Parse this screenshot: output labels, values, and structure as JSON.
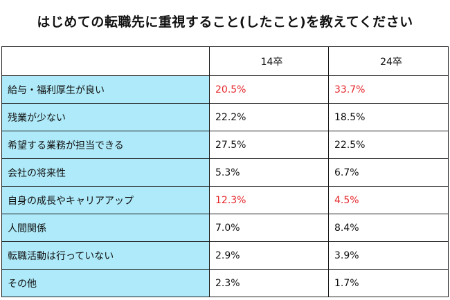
{
  "chart_data": {
    "type": "table",
    "title": "はじめての転職先に重視すること(したこと)を教えてください",
    "categories": [
      "給与・福利厚生が良い",
      "残業が少ない",
      "希望する業務が担当できる",
      "会社の将来性",
      "自身の成長やキャリアアップ",
      "人間関係",
      "転職活動は行っていない",
      "その他"
    ],
    "series": [
      {
        "name": "14卒",
        "values": [
          20.5,
          22.2,
          27.5,
          5.3,
          12.3,
          7.0,
          2.9,
          2.3
        ],
        "labels": [
          "20.5%",
          "22.2%",
          "27.5%",
          "5.3%",
          "12.3%",
          "7.0%",
          "2.9%",
          "2.3%"
        ],
        "highlight": [
          true,
          false,
          false,
          false,
          true,
          false,
          false,
          false
        ]
      },
      {
        "name": "24卒",
        "values": [
          33.7,
          18.5,
          22.5,
          6.7,
          4.5,
          8.4,
          3.9,
          1.7
        ],
        "labels": [
          "33.7%",
          "18.5%",
          "22.5%",
          "6.7%",
          "4.5%",
          "8.4%",
          "3.9%",
          "1.7%"
        ],
        "highlight": [
          true,
          false,
          false,
          false,
          true,
          false,
          false,
          false
        ]
      }
    ]
  },
  "colors": {
    "row_label_bg": "#aeeaf9",
    "highlight_text": "#e5262a",
    "normal_text": "#111111",
    "border": "#1a1a1a"
  }
}
